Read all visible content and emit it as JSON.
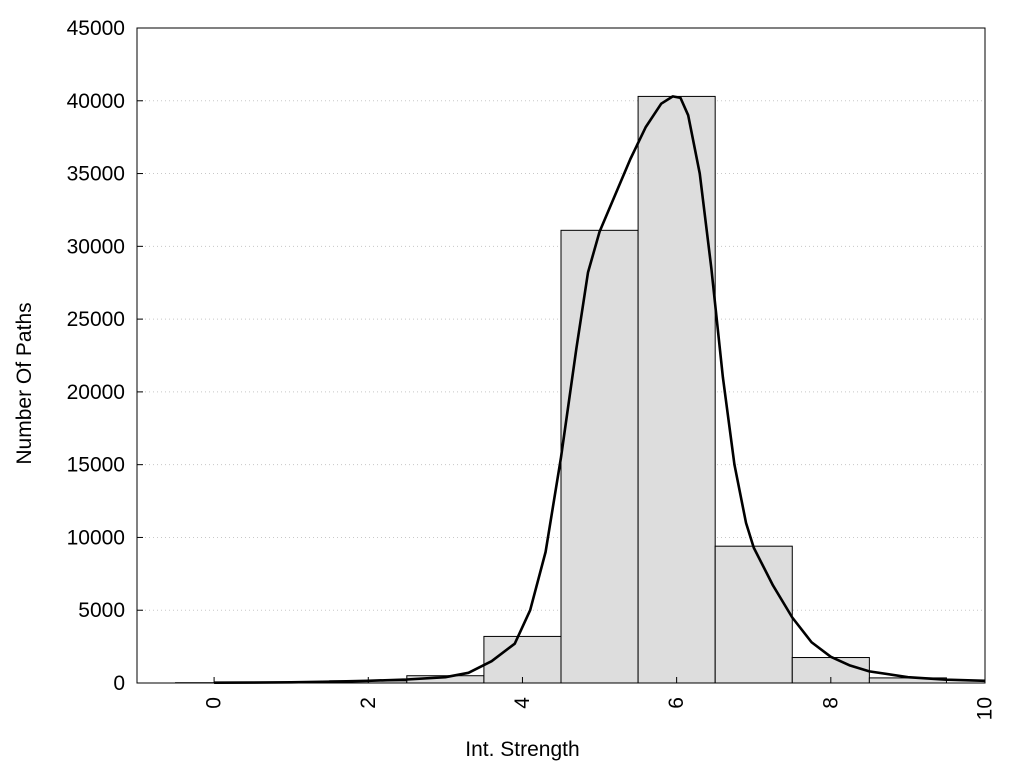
{
  "chart_data": {
    "type": "bar",
    "title": "",
    "xlabel": "Int. Strength",
    "ylabel": "Number Of Paths",
    "xlim": [
      -1,
      10
    ],
    "ylim": [
      0,
      45000
    ],
    "x_ticks": [
      0,
      2,
      4,
      6,
      8,
      10
    ],
    "y_ticks": [
      0,
      5000,
      10000,
      15000,
      20000,
      25000,
      30000,
      35000,
      40000,
      45000
    ],
    "grid": "horizontal dotted",
    "bar_color": "#dddddd",
    "bars": [
      {
        "x": 0,
        "value": 20
      },
      {
        "x": 1,
        "value": 40
      },
      {
        "x": 2,
        "value": 150
      },
      {
        "x": 3,
        "value": 500
      },
      {
        "x": 4,
        "value": 3200
      },
      {
        "x": 5,
        "value": 31100
      },
      {
        "x": 6,
        "value": 40300
      },
      {
        "x": 7,
        "value": 9400
      },
      {
        "x": 8,
        "value": 1750
      },
      {
        "x": 9,
        "value": 350
      }
    ],
    "fit_curve": {
      "color": "#000000",
      "points": [
        [
          0,
          20
        ],
        [
          0.5,
          30
        ],
        [
          1,
          50
        ],
        [
          1.5,
          90
        ],
        [
          2,
          150
        ],
        [
          2.5,
          240
        ],
        [
          3,
          400
        ],
        [
          3.3,
          700
        ],
        [
          3.6,
          1500
        ],
        [
          3.9,
          2700
        ],
        [
          4.1,
          5000
        ],
        [
          4.3,
          9000
        ],
        [
          4.5,
          15500
        ],
        [
          4.7,
          23000
        ],
        [
          4.85,
          28200
        ],
        [
          5,
          31000
        ],
        [
          5.2,
          33500
        ],
        [
          5.4,
          36000
        ],
        [
          5.6,
          38200
        ],
        [
          5.8,
          39800
        ],
        [
          5.95,
          40300
        ],
        [
          6.05,
          40200
        ],
        [
          6.15,
          39000
        ],
        [
          6.3,
          35000
        ],
        [
          6.45,
          28500
        ],
        [
          6.6,
          21000
        ],
        [
          6.75,
          15000
        ],
        [
          6.9,
          11000
        ],
        [
          7,
          9300
        ],
        [
          7.25,
          6700
        ],
        [
          7.5,
          4500
        ],
        [
          7.75,
          2800
        ],
        [
          8,
          1800
        ],
        [
          8.25,
          1200
        ],
        [
          8.5,
          800
        ],
        [
          9,
          400
        ],
        [
          9.5,
          230
        ],
        [
          10,
          150
        ]
      ]
    }
  }
}
